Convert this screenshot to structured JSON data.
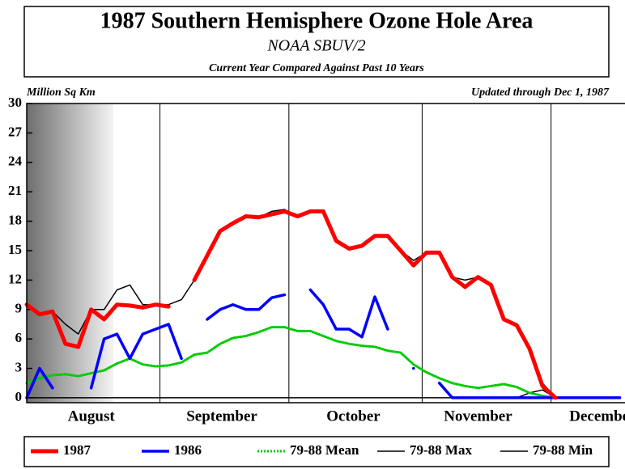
{
  "chart_data": {
    "type": "line",
    "title": "1987 Southern Hemisphere Ozone Hole Area",
    "subtitle": "NOAA SBUV/2",
    "subtitle2": "Current Year Compared Against Past 10 Years",
    "ylabel": "Million Sq Km",
    "annotation": "Updated through Dec 1, 1987",
    "ylim": [
      -0.5,
      30
    ],
    "yticks": [
      0,
      3,
      6,
      9,
      12,
      15,
      18,
      21,
      24,
      27,
      30
    ],
    "xlim": [
      0,
      139.2
    ],
    "xticks": [
      {
        "value": 15,
        "label": "August"
      },
      {
        "value": 45.4,
        "label": "September"
      },
      {
        "value": 76,
        "label": "October"
      },
      {
        "value": 105,
        "label": "November"
      },
      {
        "value": 134,
        "label": "December"
      }
    ],
    "xgrid": [
      31,
      61,
      92,
      122
    ],
    "x": [
      0,
      3,
      6,
      9,
      12,
      15,
      18,
      21,
      24,
      27,
      30,
      33,
      36,
      39,
      42,
      45,
      48,
      51,
      54,
      57,
      60,
      63,
      66,
      69,
      72,
      75,
      78,
      81,
      84,
      87,
      90,
      93,
      96,
      99,
      102,
      105,
      108,
      111,
      114,
      117,
      120,
      123,
      126,
      129,
      132,
      135,
      138
    ],
    "series": [
      {
        "name": "79-88 Max",
        "color": "#000000",
        "width": 1.5,
        "dash": false,
        "values": [
          9.5,
          8.5,
          8.8,
          7.5,
          6.5,
          9,
          9,
          11,
          11.5,
          9.5,
          9.5,
          9.5,
          10,
          12,
          14.5,
          17,
          17.8,
          18.5,
          18.4,
          19,
          19.2,
          18.5,
          19,
          19,
          16,
          15.2,
          15.5,
          16.5,
          16.5,
          15,
          14,
          14.8,
          14.8,
          12.3,
          12,
          12.3,
          11.5,
          8,
          7.4,
          5,
          1.5,
          0,
          0,
          0,
          0,
          0,
          0
        ]
      },
      {
        "name": "79-88 Min",
        "color": "#000000",
        "width": 1.5,
        "dash": false,
        "values": [
          0,
          0,
          0,
          0,
          0,
          0,
          0,
          0,
          0,
          0,
          0,
          0,
          0,
          0,
          0,
          0,
          0,
          0,
          0,
          0,
          0,
          0,
          0,
          0,
          0,
          0,
          0,
          0,
          0,
          0,
          0,
          0,
          0,
          0,
          0,
          0,
          0,
          0,
          0,
          0.5,
          0.8,
          0,
          0,
          0,
          0,
          0,
          0
        ]
      },
      {
        "name": "79-88 Mean",
        "color": "#00cc00",
        "width": 3,
        "dash": true,
        "values": [
          1.5,
          2,
          2.3,
          2.4,
          2.2,
          2.5,
          2.8,
          3.5,
          4,
          3.4,
          3.2,
          3.3,
          3.6,
          4.4,
          4.6,
          5.5,
          6.1,
          6.3,
          6.7,
          7.2,
          7.2,
          6.8,
          6.8,
          6.3,
          5.8,
          5.5,
          5.3,
          5.2,
          4.8,
          4.6,
          3.4,
          2.6,
          2,
          1.5,
          1.2,
          1,
          1.2,
          1.4,
          1.1,
          0.5,
          0.2,
          0,
          0,
          0,
          0,
          0,
          0
        ]
      },
      {
        "name": "1986",
        "color": "#0000ff",
        "width": 3.5,
        "dash": false,
        "values": [
          0,
          3,
          1,
          null,
          null,
          1,
          6,
          6.5,
          4,
          6.5,
          7,
          7.5,
          4,
          null,
          8,
          9,
          9.5,
          9,
          9,
          10.2,
          10.5,
          null,
          11,
          9.5,
          7,
          7,
          6.2,
          10.3,
          7,
          null,
          3,
          null,
          1.5,
          0,
          0,
          0,
          0,
          0,
          0,
          0,
          0,
          0,
          0,
          0,
          0,
          0,
          0
        ]
      },
      {
        "name": "1987",
        "color": "#ff0000",
        "width": 5,
        "dash": false,
        "values": [
          9.5,
          8.5,
          8.8,
          5.5,
          5.2,
          9,
          8,
          9.5,
          9.4,
          9.2,
          9.5,
          9.3,
          null,
          12,
          14.5,
          17,
          17.8,
          18.5,
          18.4,
          18.7,
          19,
          18.5,
          19,
          19,
          16,
          15.2,
          15.5,
          16.5,
          16.5,
          15,
          13.5,
          14.8,
          14.8,
          12.3,
          11.3,
          12.3,
          11.5,
          8,
          7.4,
          5,
          1.2,
          0,
          null,
          null,
          null,
          null,
          null
        ]
      }
    ],
    "legend_order": [
      4,
      3,
      2,
      0,
      1
    ]
  }
}
